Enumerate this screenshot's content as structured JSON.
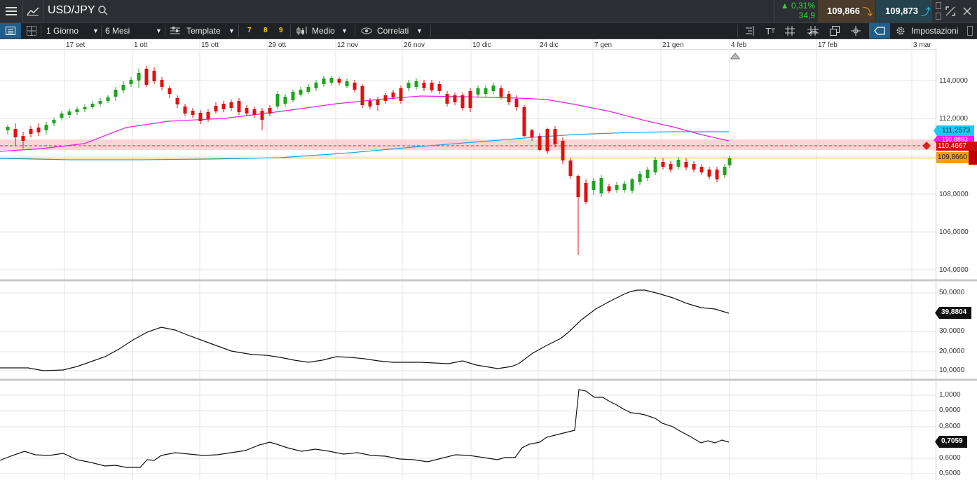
{
  "header": {
    "symbol": "USD/JPY",
    "change_pct": "▲ 0,31%",
    "change_pts": "34,9",
    "bid": "109,866",
    "ask": "109,873"
  },
  "toolbar": {
    "interval": "1 Giorno",
    "range": "6 Mesi",
    "template": "Template",
    "preset_7": "7",
    "preset_8": "8",
    "preset_9": "9",
    "chart_style": "Medio",
    "correlated": "Correlati",
    "settings": "Impostazioni"
  },
  "dates": [
    "17 set",
    "1 ott",
    "15 ott",
    "29 ott",
    "12 nov",
    "26 nov",
    "10 dic",
    "24 dic",
    "7 gen",
    "21 gen",
    "4 feb",
    "17 feb",
    "3 mar"
  ],
  "price_panel": {
    "ticks": [
      "114,0000",
      "112,0000",
      "108,0000",
      "106,0000",
      "104,0000"
    ],
    "tag_blue": "111,2573",
    "tag_magenta": "110,8893",
    "tag_red": "110,4667",
    "tag_orange": "109,8660",
    "colors": {
      "up": "#1fa31f",
      "down": "#e01010",
      "ma_fast": "#e020e0",
      "ma_slow": "#1ea4e0",
      "band": "#f7c6c6",
      "price_line": "#f0b000"
    }
  },
  "indicator1": {
    "ticks": [
      "50,0000",
      "30,0000",
      "20,0000",
      "10,0000"
    ],
    "value": "39,8804"
  },
  "indicator2": {
    "ticks": [
      "1,0000",
      "0,9000",
      "0,8000",
      "0,6000",
      "0,5000"
    ],
    "value": "0,7059"
  }
}
